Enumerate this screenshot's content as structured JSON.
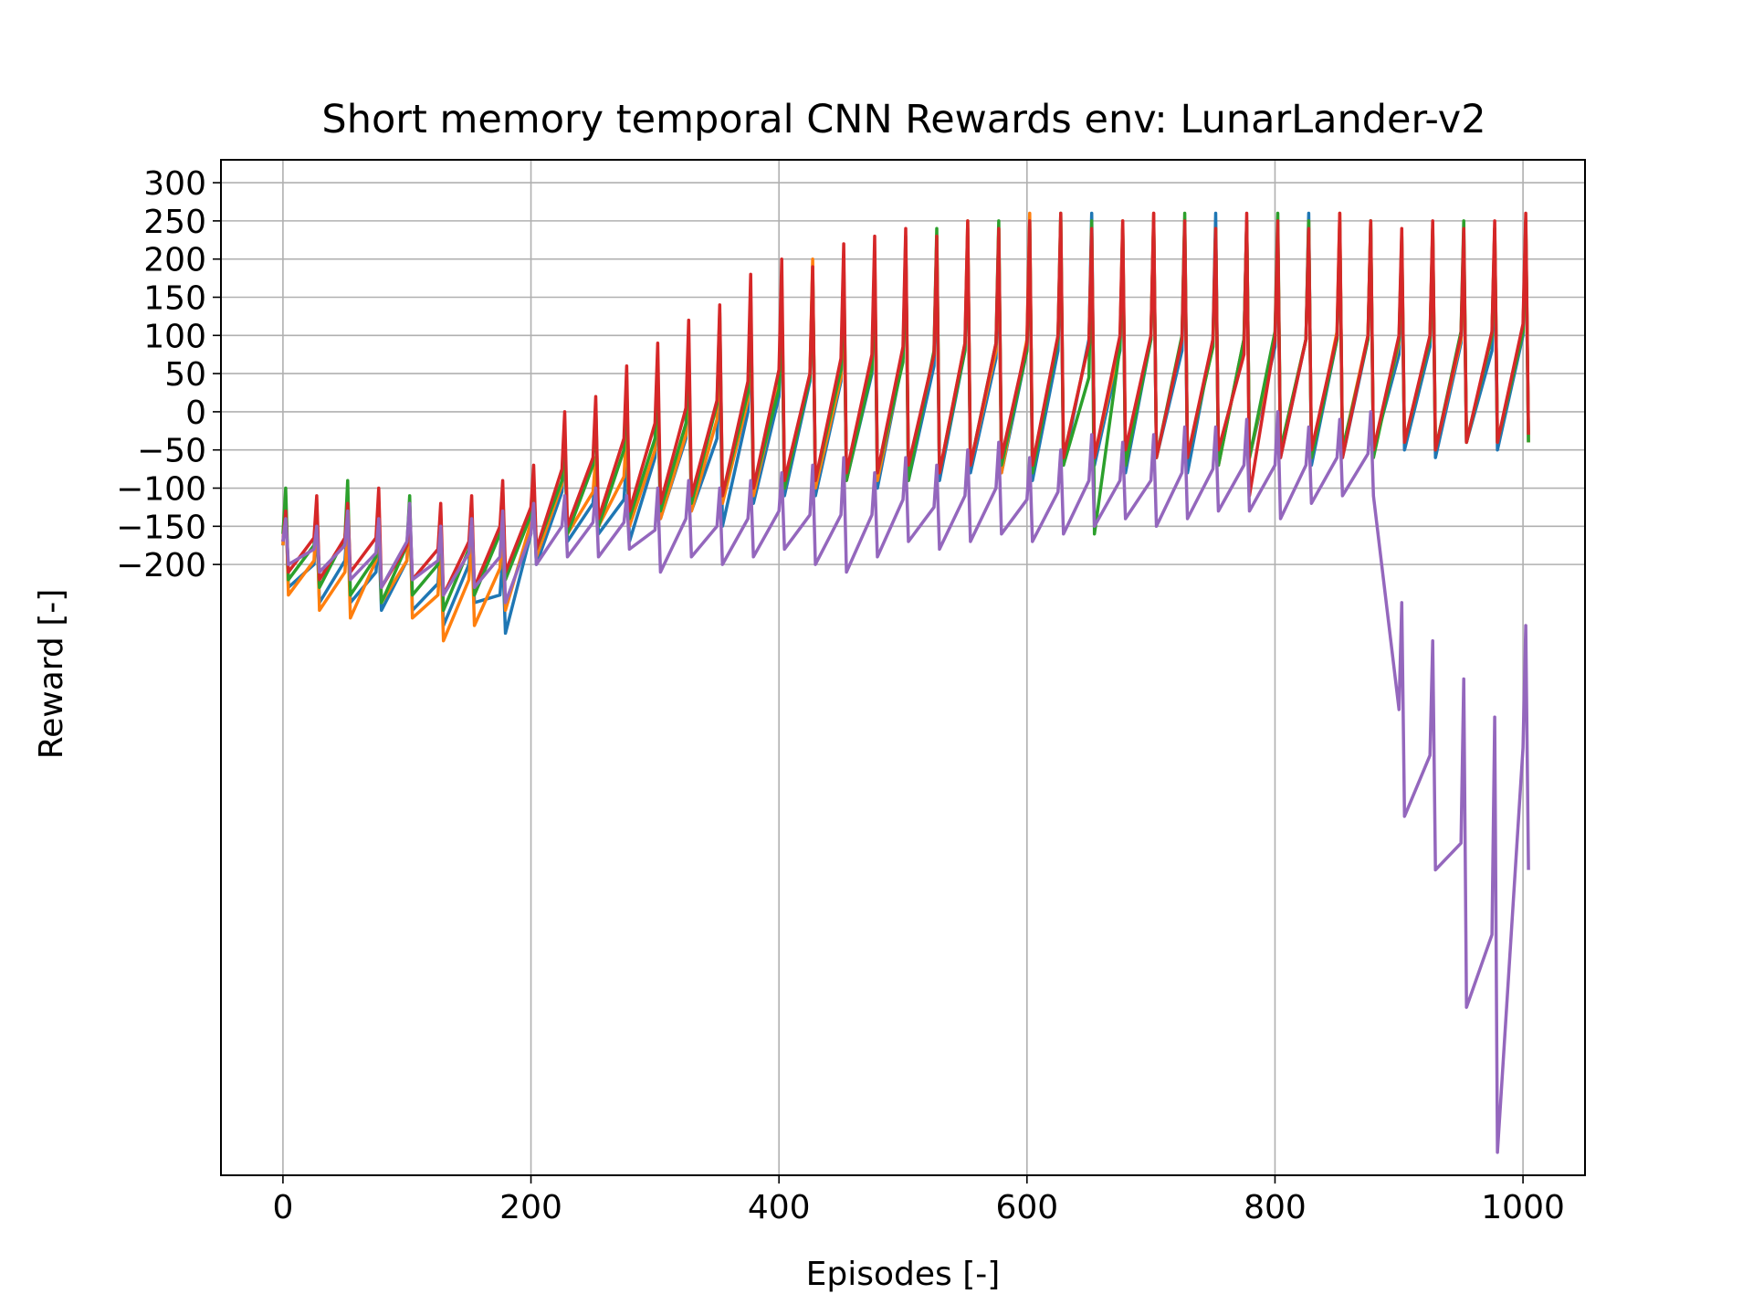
{
  "chart_data": {
    "type": "line",
    "title": "Short memory temporal CNN Rewards env: LunarLander-v2",
    "xlabel": "Episodes [-]",
    "ylabel": "Reward [-]",
    "xlim": [
      -50,
      1050
    ],
    "xticks": [
      0,
      200,
      400,
      600,
      800,
      1000
    ],
    "xtick_labels": [
      "0",
      "200",
      "400",
      "600",
      "800",
      "1000"
    ],
    "ylim": [
      -1000,
      330
    ],
    "yticks": [
      -200,
      -150,
      -100,
      -50,
      0,
      50,
      100,
      150,
      200,
      250,
      300
    ],
    "ytick_labels": [
      "−200",
      "−150",
      "−100",
      "−50",
      "0",
      "50",
      "100",
      "150",
      "200",
      "250",
      "300"
    ],
    "grid": true,
    "legend": "none",
    "series": [
      {
        "color": "#1f77b4",
        "x": [
          0,
          25,
          50,
          75,
          100,
          125,
          150,
          175,
          200,
          225,
          250,
          275,
          300,
          325,
          350,
          375,
          400,
          425,
          450,
          475,
          500,
          525,
          550,
          575,
          600,
          625,
          650,
          675,
          700,
          725,
          750,
          775,
          800,
          825,
          850,
          875,
          900,
          925,
          950,
          975,
          1000
        ],
        "values": [
          -120,
          -150,
          -140,
          -160,
          -130,
          -170,
          -150,
          -190,
          -120,
          -40,
          -80,
          -60,
          20,
          60,
          80,
          120,
          150,
          190,
          170,
          200,
          230,
          210,
          240,
          220,
          250,
          230,
          260,
          240,
          250,
          240,
          260,
          250,
          230,
          260,
          250,
          240,
          200,
          230,
          220,
          210,
          240
        ],
        "min_envelope": [
          -230,
          -250,
          -250,
          -260,
          -260,
          -280,
          -250,
          -290,
          -200,
          -170,
          -160,
          -170,
          -140,
          -130,
          -150,
          -120,
          -110,
          -110,
          -90,
          -100,
          -90,
          -90,
          -80,
          -80,
          -90,
          -70,
          -70,
          -80,
          -60,
          -80,
          -70,
          -60,
          -60,
          -70,
          -60,
          -50,
          -50,
          -60,
          -40,
          -50,
          -40
        ]
      },
      {
        "color": "#ff7f0e",
        "x": [
          0,
          25,
          50,
          75,
          100,
          125,
          150,
          175,
          200,
          225,
          250,
          275,
          300,
          325,
          350,
          375,
          400,
          425,
          450,
          475,
          500,
          525,
          550,
          575,
          600,
          625,
          650,
          675,
          700,
          725,
          750,
          775,
          800,
          825,
          850,
          875,
          900,
          925,
          950,
          975,
          1000
        ],
        "values": [
          -110,
          -130,
          -150,
          -140,
          -120,
          -180,
          -160,
          -150,
          -100,
          -30,
          -60,
          -20,
          40,
          70,
          100,
          140,
          170,
          200,
          180,
          210,
          220,
          230,
          250,
          240,
          260,
          250,
          240,
          250,
          260,
          250,
          240,
          250,
          240,
          250,
          260,
          250,
          220,
          240,
          230,
          240,
          250
        ],
        "min_envelope": [
          -240,
          -260,
          -270,
          -250,
          -270,
          -300,
          -280,
          -260,
          -190,
          -160,
          -150,
          -150,
          -140,
          -130,
          -120,
          -110,
          -100,
          -100,
          -90,
          -90,
          -80,
          -80,
          -70,
          -80,
          -70,
          -60,
          -60,
          -70,
          -60,
          -60,
          -70,
          -60,
          -50,
          -60,
          -50,
          -50,
          -40,
          -50,
          -40,
          -40,
          -40
        ]
      },
      {
        "color": "#2ca02c",
        "x": [
          0,
          25,
          50,
          75,
          100,
          125,
          150,
          175,
          200,
          225,
          250,
          275,
          300,
          325,
          350,
          375,
          400,
          425,
          450,
          475,
          500,
          525,
          550,
          575,
          600,
          625,
          650,
          675,
          700,
          725,
          750,
          775,
          800,
          825,
          850,
          875,
          900,
          925,
          950,
          975,
          1000
        ],
        "values": [
          -100,
          -120,
          -90,
          -130,
          -110,
          -140,
          -120,
          -100,
          -90,
          -20,
          10,
          40,
          60,
          90,
          130,
          150,
          160,
          180,
          200,
          190,
          220,
          240,
          230,
          250,
          240,
          260,
          250,
          240,
          250,
          260,
          240,
          250,
          260,
          250,
          240,
          250,
          230,
          240,
          250,
          240,
          250
        ],
        "min_envelope": [
          -220,
          -230,
          -240,
          -250,
          -240,
          -260,
          -240,
          -220,
          -180,
          -160,
          -150,
          -140,
          -130,
          -120,
          -110,
          -100,
          -100,
          -90,
          -90,
          -80,
          -90,
          -80,
          -70,
          -70,
          -80,
          -70,
          -160,
          -70,
          -60,
          -60,
          -70,
          -60,
          -50,
          -60,
          -50,
          -60,
          -40,
          -50,
          -40,
          -40,
          -40
        ]
      },
      {
        "color": "#d62728",
        "x": [
          0,
          25,
          50,
          75,
          100,
          125,
          150,
          175,
          200,
          225,
          250,
          275,
          300,
          325,
          350,
          375,
          400,
          425,
          450,
          475,
          500,
          525,
          550,
          575,
          600,
          625,
          650,
          675,
          700,
          725,
          750,
          775,
          800,
          825,
          850,
          875,
          900,
          925,
          950,
          975,
          1000
        ],
        "values": [
          -130,
          -110,
          -120,
          -100,
          -130,
          -120,
          -110,
          -90,
          -70,
          0,
          20,
          60,
          90,
          120,
          140,
          180,
          200,
          190,
          220,
          230,
          240,
          230,
          250,
          240,
          250,
          260,
          240,
          250,
          260,
          250,
          240,
          260,
          250,
          240,
          260,
          250,
          240,
          250,
          240,
          250,
          260
        ],
        "min_envelope": [
          -210,
          -220,
          -210,
          -230,
          -220,
          -240,
          -230,
          -210,
          -180,
          -150,
          -140,
          -130,
          -120,
          -110,
          -110,
          -100,
          -90,
          -90,
          -80,
          -80,
          -70,
          -80,
          -70,
          -60,
          -70,
          -60,
          -60,
          -50,
          -60,
          -60,
          -50,
          -110,
          -60,
          -50,
          -60,
          -50,
          -40,
          -50,
          -40,
          -40,
          -30
        ]
      },
      {
        "color": "#9467bd",
        "x": [
          0,
          25,
          50,
          75,
          100,
          125,
          150,
          175,
          200,
          225,
          250,
          275,
          300,
          325,
          350,
          375,
          400,
          425,
          450,
          475,
          500,
          525,
          550,
          575,
          600,
          625,
          650,
          675,
          700,
          725,
          750,
          775,
          800,
          825,
          850,
          875,
          900,
          925,
          950,
          975,
          1000
        ],
        "values": [
          -140,
          -150,
          -130,
          -140,
          -120,
          -150,
          -140,
          -130,
          -120,
          -110,
          -100,
          -110,
          -100,
          -90,
          -100,
          -90,
          -80,
          -70,
          -60,
          -80,
          -60,
          -70,
          -50,
          -40,
          -60,
          -50,
          -30,
          -40,
          -30,
          -20,
          -20,
          -10,
          0,
          -20,
          -10,
          0,
          -250,
          -300,
          -350,
          -400,
          -280
        ],
        "min_envelope": [
          -200,
          -210,
          -220,
          -230,
          -220,
          -240,
          -230,
          -250,
          -200,
          -190,
          -190,
          -180,
          -210,
          -190,
          -200,
          -190,
          -180,
          -200,
          -210,
          -190,
          -170,
          -180,
          -170,
          -160,
          -170,
          -160,
          -150,
          -140,
          -150,
          -140,
          -130,
          -130,
          -140,
          -120,
          -110,
          -110,
          -530,
          -600,
          -780,
          -970,
          -600
        ]
      }
    ]
  }
}
